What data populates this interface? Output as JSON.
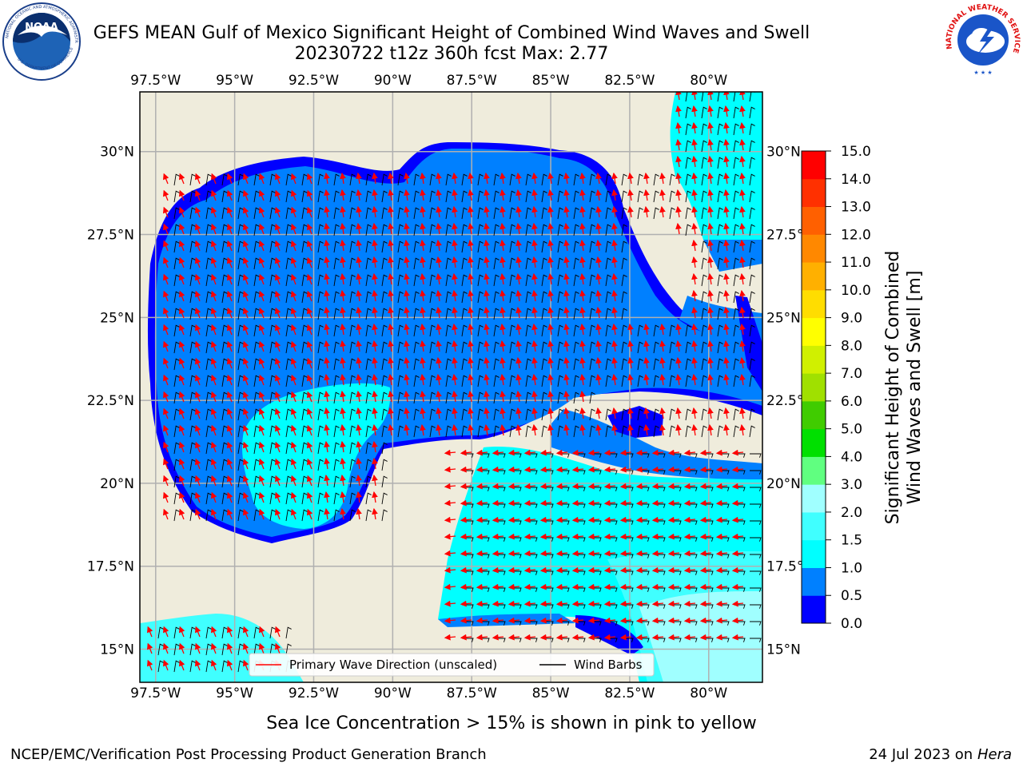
{
  "header": {
    "title_line1": "GEFS MEAN Gulf of Mexico Significant Height of Combined Wind Waves and Swell",
    "title_line2": "20230722 t12z 360h fcst   Max: 2.77"
  },
  "logos": {
    "noaa_text": "NOAA",
    "noaa_ring_top": "NATIONAL OCEANIC AND ATMOSPHERIC ADMINISTRATION",
    "noaa_ring_bottom": "U.S. DEPARTMENT OF COMMERCE",
    "nws_ring": "NATIONAL WEATHER SERVICE"
  },
  "map": {
    "lon_labels": [
      "97.5°W",
      "95°W",
      "92.5°W",
      "90°W",
      "87.5°W",
      "85°W",
      "82.5°W",
      "80°W"
    ],
    "lon_values": [
      -97.5,
      -95,
      -92.5,
      -90,
      -87.5,
      -85,
      -82.5,
      -80
    ],
    "lat_labels": [
      "30°N",
      "27.5°N",
      "25°N",
      "22.5°N",
      "20°N",
      "17.5°N",
      "15°N"
    ],
    "lat_values": [
      30,
      27.5,
      25,
      22.5,
      20,
      17.5,
      15
    ],
    "lon_range": [
      -98,
      -78.3
    ],
    "lat_range": [
      14,
      31.8
    ],
    "land_color": "#efecdc",
    "grid_color": "#b0b0b0",
    "arrow_color": "#ff0000",
    "barb_color": "#000000"
  },
  "legend": {
    "wave_direction_label": "Primary Wave Direction (unscaled)",
    "wind_barbs_label": "Wind Barbs"
  },
  "colorbar": {
    "label_line1": "Significant Height of Combined",
    "label_line2": "Wind Waves and Swell [m]",
    "ticks": [
      "0.0",
      "0.5",
      "1.0",
      "1.5",
      "2.0",
      "3.0",
      "4.0",
      "5.0",
      "6.0",
      "7.0",
      "8.0",
      "9.0",
      "10.0",
      "11.0",
      "12.0",
      "13.0",
      "14.0",
      "15.0"
    ],
    "colors": [
      "#0000ff",
      "#0080ff",
      "#00ffff",
      "#40ffff",
      "#a0ffff",
      "#60ff80",
      "#00e000",
      "#40cc00",
      "#a0e000",
      "#d0f000",
      "#ffff00",
      "#ffdd00",
      "#ffb000",
      "#ff8800",
      "#ff6000",
      "#ff3000",
      "#ff0000"
    ]
  },
  "footer": {
    "sea_ice_note": "Sea Ice Concentration > 15% is shown in pink to yellow",
    "producer": "NCEP/EMC/Verification Post Processing Product Generation Branch",
    "date_prefix": "24 Jul 2023 on ",
    "machine": "Hera"
  }
}
